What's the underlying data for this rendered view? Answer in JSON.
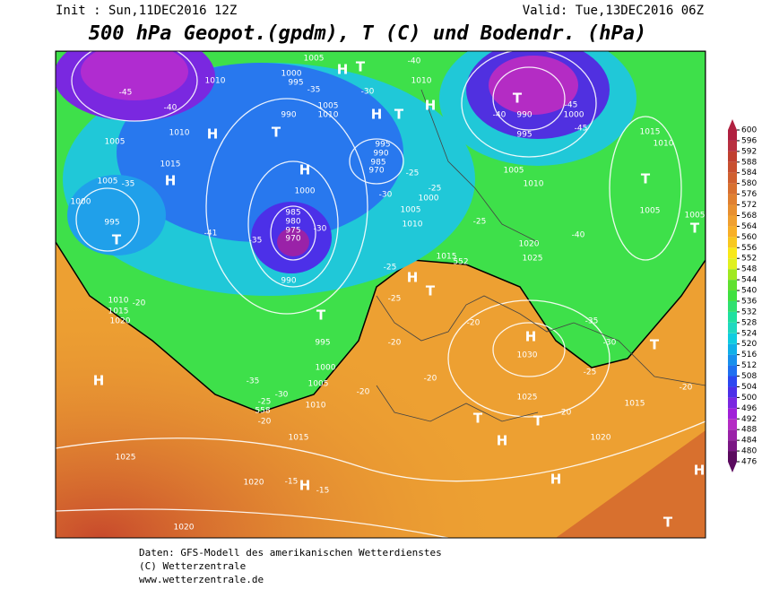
{
  "header": {
    "init": "Init : Sun,11DEC2016 12Z",
    "valid": "Valid: Tue,13DEC2016 06Z",
    "title": "500 hPa Geopot.(gpdm), T (C) und Bodendr. (hPa)"
  },
  "footer": {
    "lines": [
      "Daten: GFS-Modell des amerikanischen Wetterdienstes",
      "(C) Wetterzentrale",
      "www.wetterzentrale.de"
    ]
  },
  "colorbar": {
    "ticks": [
      476,
      480,
      484,
      488,
      492,
      496,
      500,
      504,
      508,
      512,
      516,
      520,
      524,
      528,
      532,
      536,
      540,
      544,
      548,
      552,
      556,
      560,
      564,
      568,
      572,
      576,
      580,
      584,
      588,
      592,
      596,
      600
    ],
    "colors": [
      "#5a0a5e",
      "#7a1684",
      "#9a22a8",
      "#b42cc4",
      "#a020d8",
      "#7a28e0",
      "#4c30e8",
      "#2c48f0",
      "#2070f0",
      "#1890ec",
      "#10b0e8",
      "#10cce0",
      "#20d8c0",
      "#20e0a0",
      "#30e070",
      "#40e040",
      "#60e030",
      "#a0e820",
      "#e0f020",
      "#f8e818",
      "#f8c820",
      "#f8b028",
      "#f0a030",
      "#e89030",
      "#e08030",
      "#d87030",
      "#d06030",
      "#c85030",
      "#c04030",
      "#b83040",
      "#b02040"
    ]
  },
  "map": {
    "labels": [
      "1005",
      "H",
      "T",
      "-40",
      "1010",
      "-45",
      "1000",
      "995",
      "-35",
      "-30",
      "1010",
      "H",
      "T",
      "H",
      "-40",
      "990",
      "1005",
      "1010",
      "T",
      "990",
      "-40",
      "-45",
      "1000",
      "995",
      "-45",
      "H",
      "T",
      "1010",
      "1005",
      "995",
      "990",
      "985",
      "970",
      "H",
      "H",
      "1015",
      "1005",
      "-35",
      "1000",
      "1005",
      "1010",
      "1015",
      "1010",
      "T",
      "1005",
      "1005",
      "T",
      "-25",
      "-30",
      "-25",
      "1000",
      "1005",
      "1010",
      "985",
      "980",
      "975",
      "970",
      "-41",
      "-35",
      "-30",
      "1020",
      "1025",
      "-40",
      "-25",
      "T",
      "995",
      "1000",
      "1015",
      "552",
      "-25",
      "H",
      "T",
      "T",
      "990",
      "-25",
      "1010",
      "1015",
      "1020",
      "-20",
      "-20",
      "H",
      "-35",
      "T",
      "-30",
      "1030",
      "995",
      "-20",
      "1000",
      "1005",
      "-25",
      "-20",
      "H",
      "-35",
      "-30",
      "-25",
      "1010",
      "-20",
      "-20",
      "1025",
      "1015",
      "558",
      "-20",
      "T",
      "T",
      "-20",
      "1015",
      "H",
      "1020",
      "1025",
      "H",
      "H",
      "1020",
      "-15",
      "H",
      "-15",
      "1020",
      "T"
    ]
  }
}
